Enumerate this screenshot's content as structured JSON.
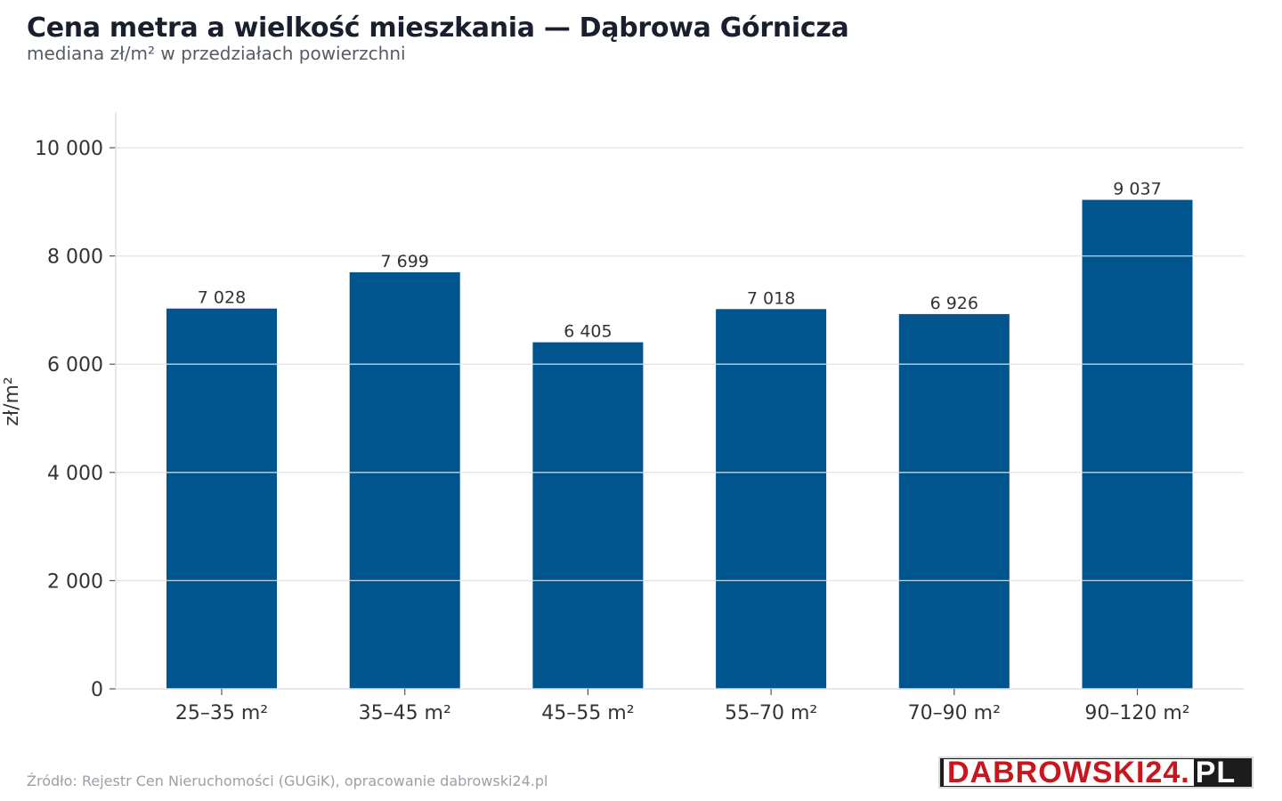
{
  "header": {
    "title": "Cena metra a wielkość mieszkania — Dąbrowa Górnicza",
    "subtitle": "mediana zł/m² w przedziałach powierzchni"
  },
  "footer": {
    "source": "Źródło: Rejestr Cen Nieruchomości (GUGiK), opracowanie dabrowski24.pl"
  },
  "logo": {
    "text_red": "DABROWSKI24.",
    "text_white": "PL",
    "colors": {
      "red": "#c8161d",
      "dark": "#1c1c1c"
    }
  },
  "chart_data": {
    "type": "bar",
    "title": "Cena metra a wielkość mieszkania — Dąbrowa Górnicza",
    "subtitle": "mediana zł/m² w przedziałach powierzchni",
    "xlabel": "",
    "ylabel": "zł/m²",
    "categories": [
      "25–35 m²",
      "35–45 m²",
      "45–55 m²",
      "55–70 m²",
      "70–90 m²",
      "90–120 m²"
    ],
    "values": [
      7028,
      7699,
      6405,
      7018,
      6926,
      9037
    ],
    "data_labels": [
      "7 028",
      "7 699",
      "6 405",
      "7 018",
      "6 926",
      "9 037"
    ],
    "yticks": [
      0,
      2000,
      4000,
      6000,
      8000,
      10000
    ],
    "ytick_labels": [
      "0",
      "2 000",
      "4 000",
      "6 000",
      "8 000",
      "10 000"
    ],
    "ylim": [
      0,
      10650
    ],
    "grid": true,
    "bar_color": "#00558f",
    "grid_color": "#e6e6e6"
  }
}
